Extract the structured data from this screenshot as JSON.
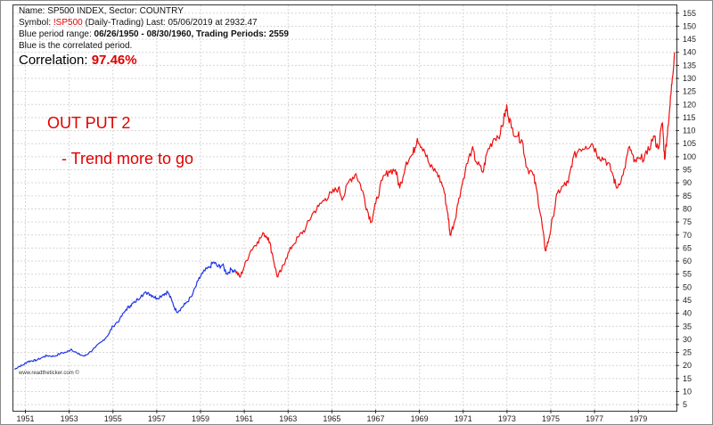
{
  "header": {
    "name_label": "Name:",
    "name_value": "SP500 INDEX, Sector: COUNTRY",
    "symbol_label": "Symbol:",
    "symbol_value": "!SP500",
    "symbol_rest": "(Daily-Trading) Last: 05/06/2019 at 2932.47",
    "range_label": "Blue period range:",
    "range_value": "06/26/1950 - 08/30/1960, Trading Periods: 2559",
    "blue_note": "Blue is the correlated period."
  },
  "correlation": {
    "label": "Correlation:",
    "value": "97.46%"
  },
  "annotations": {
    "line1": "OUT PUT 2",
    "line2": "- Trend more to go"
  },
  "watermark": "www.readtheticker.com ©",
  "colors": {
    "correlated": "#1f35e6",
    "projection": "#ee1111",
    "highlight": "#e00000"
  },
  "chart_data": {
    "type": "line",
    "x_ticks": [
      "1951",
      "1953",
      "1955",
      "1957",
      "1959",
      "1961",
      "1963",
      "1965",
      "1967",
      "1969",
      "1971",
      "1973",
      "1975",
      "1977",
      "1979"
    ],
    "y_ticks": [
      "5",
      "10",
      "15",
      "20",
      "25",
      "30",
      "35",
      "40",
      "45",
      "50",
      "55",
      "60",
      "65",
      "70",
      "75",
      "80",
      "85",
      "90",
      "95",
      "100",
      "105",
      "110",
      "115",
      "120",
      "125",
      "130",
      "135",
      "140",
      "145",
      "150",
      "155"
    ],
    "ylim": [
      3,
      158
    ],
    "xlim": [
      1950.45,
      1980.7
    ],
    "grid": true,
    "series": [
      {
        "color": "blue",
        "points": [
          [
            1950.5,
            18.5
          ],
          [
            1950.7,
            19.6
          ],
          [
            1950.9,
            20.2
          ],
          [
            1951.1,
            21.5
          ],
          [
            1951.3,
            21.8
          ],
          [
            1951.5,
            22.0
          ],
          [
            1951.8,
            23.2
          ],
          [
            1952.0,
            23.8
          ],
          [
            1952.3,
            23.5
          ],
          [
            1952.6,
            24.6
          ],
          [
            1952.9,
            25.2
          ],
          [
            1953.1,
            26.3
          ],
          [
            1953.4,
            24.4
          ],
          [
            1953.7,
            23.6
          ],
          [
            1953.9,
            24.8
          ],
          [
            1954.2,
            26.9
          ],
          [
            1954.5,
            29.2
          ],
          [
            1954.8,
            32.0
          ],
          [
            1955.0,
            35.1
          ],
          [
            1955.3,
            37.5
          ],
          [
            1955.6,
            41.5
          ],
          [
            1955.8,
            43.0
          ],
          [
            1956.0,
            44.2
          ],
          [
            1956.3,
            47.0
          ],
          [
            1956.6,
            48.0
          ],
          [
            1956.8,
            46.8
          ],
          [
            1957.0,
            45.8
          ],
          [
            1957.3,
            47.3
          ],
          [
            1957.5,
            48.2
          ],
          [
            1957.7,
            44.5
          ],
          [
            1957.9,
            40.6
          ],
          [
            1958.1,
            41.8
          ],
          [
            1958.3,
            43.6
          ],
          [
            1958.6,
            46.5
          ],
          [
            1958.9,
            52.6
          ],
          [
            1959.1,
            55.4
          ],
          [
            1959.4,
            57.6
          ],
          [
            1959.6,
            59.6
          ],
          [
            1959.8,
            57.8
          ],
          [
            1960.0,
            58.5
          ],
          [
            1960.2,
            55.2
          ],
          [
            1960.4,
            56.8
          ],
          [
            1960.6,
            56.3
          ]
        ]
      },
      {
        "color": "red",
        "points": [
          [
            1960.6,
            56.3
          ],
          [
            1960.8,
            53.8
          ],
          [
            1961.0,
            58.0
          ],
          [
            1961.3,
            64.2
          ],
          [
            1961.6,
            67.4
          ],
          [
            1961.9,
            70.5
          ],
          [
            1962.1,
            69.0
          ],
          [
            1962.3,
            62.0
          ],
          [
            1962.5,
            54.0
          ],
          [
            1962.7,
            56.5
          ],
          [
            1962.9,
            61.0
          ],
          [
            1963.2,
            66.0
          ],
          [
            1963.5,
            69.5
          ],
          [
            1963.8,
            72.5
          ],
          [
            1964.1,
            78.0
          ],
          [
            1964.4,
            81.0
          ],
          [
            1964.7,
            84.0
          ],
          [
            1965.0,
            86.0
          ],
          [
            1965.3,
            88.0
          ],
          [
            1965.5,
            84.0
          ],
          [
            1965.8,
            91.0
          ],
          [
            1966.1,
            93.5
          ],
          [
            1966.4,
            87.0
          ],
          [
            1966.6,
            80.0
          ],
          [
            1966.8,
            75.0
          ],
          [
            1967.0,
            82.0
          ],
          [
            1967.3,
            91.0
          ],
          [
            1967.6,
            94.5
          ],
          [
            1967.9,
            95.0
          ],
          [
            1968.1,
            88.0
          ],
          [
            1968.4,
            98.0
          ],
          [
            1968.7,
            101.0
          ],
          [
            1968.9,
            107.0
          ],
          [
            1969.2,
            103.0
          ],
          [
            1969.5,
            96.0
          ],
          [
            1969.8,
            94.0
          ],
          [
            1970.1,
            88.0
          ],
          [
            1970.3,
            78.0
          ],
          [
            1970.4,
            70.0
          ],
          [
            1970.6,
            75.0
          ],
          [
            1970.8,
            84.0
          ],
          [
            1971.1,
            95.0
          ],
          [
            1971.4,
            103.0
          ],
          [
            1971.6,
            98.0
          ],
          [
            1971.9,
            94.0
          ],
          [
            1972.1,
            102.0
          ],
          [
            1972.4,
            107.0
          ],
          [
            1972.7,
            109.0
          ],
          [
            1972.9,
            116.0
          ],
          [
            1973.0,
            119.0
          ],
          [
            1973.2,
            111.0
          ],
          [
            1973.5,
            108.0
          ],
          [
            1973.7,
            106.0
          ],
          [
            1973.9,
            96.0
          ],
          [
            1974.2,
            93.0
          ],
          [
            1974.4,
            85.0
          ],
          [
            1974.6,
            74.0
          ],
          [
            1974.75,
            64.0
          ],
          [
            1974.9,
            68.0
          ],
          [
            1975.1,
            77.0
          ],
          [
            1975.3,
            86.0
          ],
          [
            1975.6,
            89.0
          ],
          [
            1975.8,
            90.0
          ],
          [
            1976.0,
            99.0
          ],
          [
            1976.3,
            103.0
          ],
          [
            1976.6,
            104.0
          ],
          [
            1976.9,
            105.0
          ],
          [
            1977.2,
            100.0
          ],
          [
            1977.5,
            99.0
          ],
          [
            1977.8,
            94.0
          ],
          [
            1978.0,
            88.0
          ],
          [
            1978.3,
            93.0
          ],
          [
            1978.6,
            104.0
          ],
          [
            1978.8,
            98.0
          ],
          [
            1979.1,
            99.0
          ],
          [
            1979.4,
            101.0
          ],
          [
            1979.7,
            108.0
          ],
          [
            1979.9,
            103.0
          ],
          [
            1980.1,
            113.0
          ],
          [
            1980.2,
            99.0
          ],
          [
            1980.3,
            107.0
          ],
          [
            1980.45,
            120.0
          ],
          [
            1980.55,
            130.0
          ],
          [
            1980.65,
            140.0
          ]
        ]
      }
    ]
  }
}
